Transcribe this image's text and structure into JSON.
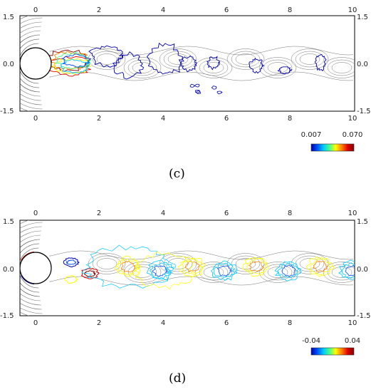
{
  "panels": [
    {
      "id": "c",
      "caption": "(c)",
      "colorbar": {
        "min_label": "0.007",
        "max_label": "0.070"
      },
      "xticks": [
        "0",
        "2",
        "4",
        "6",
        "8",
        "10"
      ],
      "yticks": [
        "1.5",
        "0.0",
        "-1.5"
      ]
    },
    {
      "id": "d",
      "caption": "(d)",
      "colorbar": {
        "min_label": "-0.04",
        "max_label": "0.04"
      },
      "xticks": [
        "0",
        "2",
        "4",
        "6",
        "8",
        "10"
      ],
      "yticks": [
        "1.5",
        "0.0",
        "-1.5"
      ]
    }
  ],
  "colors": {
    "colormap": [
      "#0000aa",
      "#0050ff",
      "#00c8ff",
      "#40ff90",
      "#ffff00",
      "#ff8000",
      "#e00000",
      "#880000"
    ],
    "streamline": "#777777",
    "frame": "#000000"
  }
}
